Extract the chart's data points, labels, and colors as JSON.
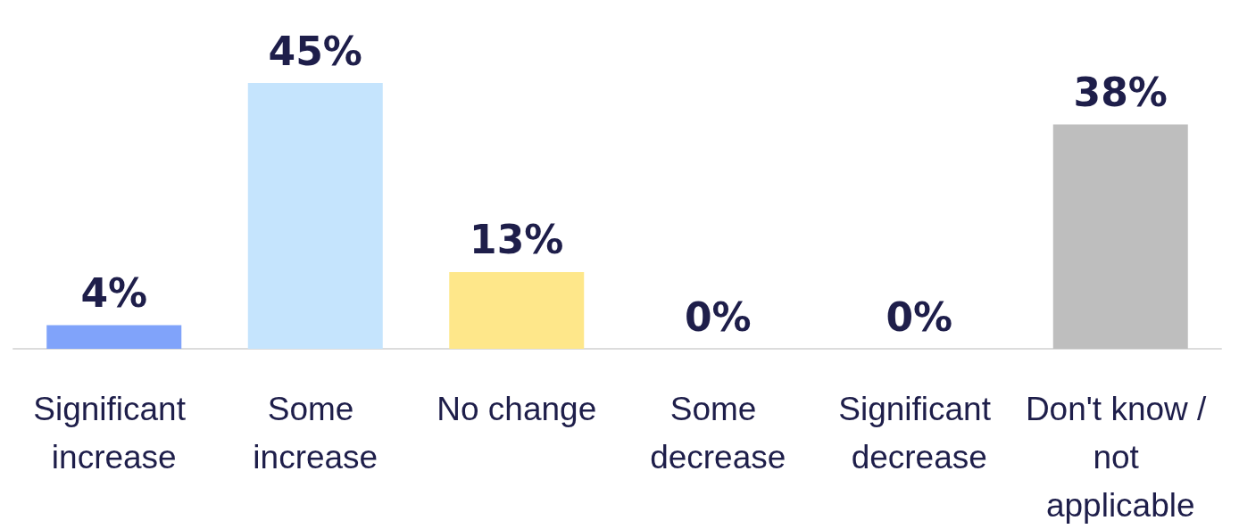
{
  "chart_data": {
    "type": "bar",
    "categories": [
      "Significant increase",
      "Some increase",
      "No change",
      "Some decrease",
      "Significant decrease",
      "Don't know / not applicable"
    ],
    "values": [
      4,
      45,
      13,
      0,
      0,
      38
    ],
    "colors": [
      "#80a3fa",
      "#c5e4fd",
      "#fee78a",
      "#80a3fa",
      "#80a3fa",
      "#bebebe"
    ],
    "value_labels": [
      "4%",
      "45%",
      "13%",
      "0%",
      "0%",
      "38%"
    ]
  }
}
